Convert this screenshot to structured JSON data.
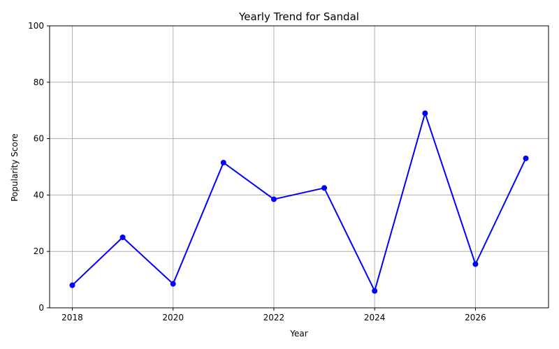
{
  "chart_data": {
    "type": "line",
    "title": "Yearly Trend for Sandal",
    "xlabel": "Year",
    "ylabel": "Popularity Score",
    "x": [
      2018,
      2019,
      2020,
      2021,
      2022,
      2023,
      2024,
      2025,
      2026,
      2027
    ],
    "series": [
      {
        "values": [
          8,
          25,
          8.5,
          51.5,
          38.5,
          42.5,
          6,
          69,
          15.5,
          53
        ]
      }
    ],
    "xlim": [
      2017.55,
      2027.45
    ],
    "ylim": [
      0,
      100
    ],
    "xticks": [
      2018,
      2020,
      2022,
      2024,
      2026
    ],
    "yticks": [
      0,
      20,
      40,
      60,
      80,
      100
    ],
    "grid": true,
    "legend": "none",
    "line_color": "#0000ff"
  }
}
